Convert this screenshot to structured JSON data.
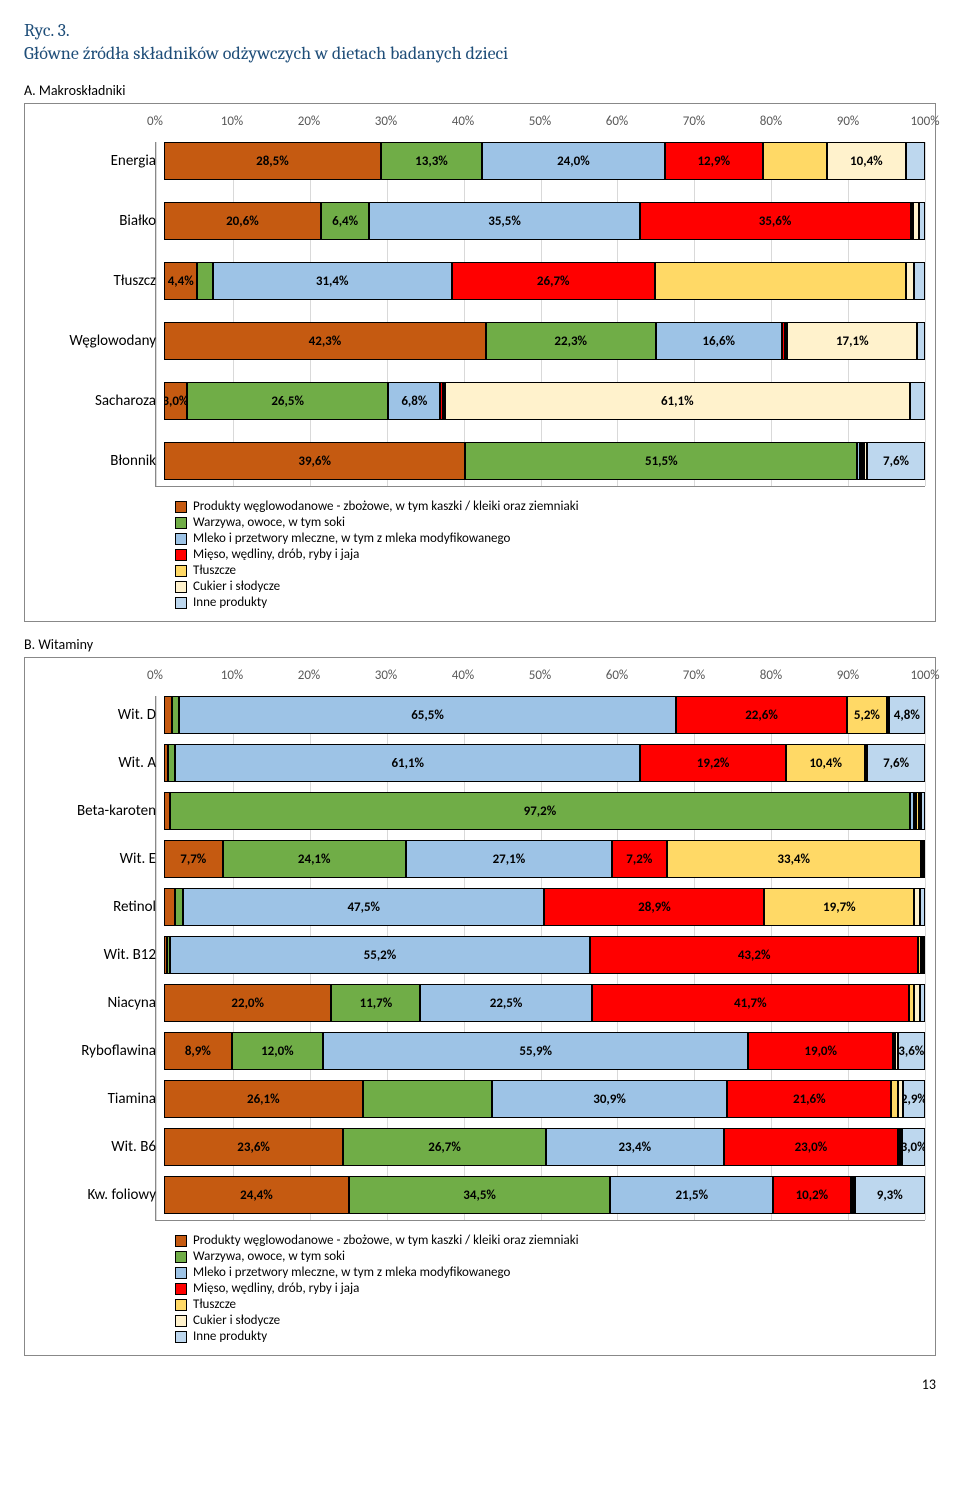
{
  "figure_label": "Ryc. 3.",
  "figure_title": "Główne źródła składników odżywczych w dietach badanych dzieci",
  "page_number": "13",
  "colors": {
    "c1": "#c55a11",
    "c2": "#70ad47",
    "c3": "#9dc3e6",
    "c4": "#ff0000",
    "c5": "#ffd966",
    "c6": "#fff2cc",
    "c7": "#bdd7ee"
  },
  "legend": [
    "Produkty węglowodanowe - zbożowe, w tym kaszki / kleiki oraz ziemniaki",
    "Warzywa, owoce, w tym soki",
    "Mleko i przetwory mleczne, w tym z mleka modyfikowanego",
    "Mięso, wędliny, drób, ryby i jaja",
    "Tłuszcze",
    "Cukier i słodycze",
    "Inne produkty"
  ],
  "chartA": {
    "title": "A. Makroskładniki",
    "ticks": [
      "0%",
      "10%",
      "20%",
      "30%",
      "40%",
      "50%",
      "60%",
      "70%",
      "80%",
      "90%",
      "100%"
    ],
    "rows": [
      {
        "label": "Energia",
        "segs": [
          {
            "v": 28.5,
            "t": "28,5%",
            "c": "c1"
          },
          {
            "v": 13.3,
            "t": "13,3%",
            "c": "c2"
          },
          {
            "v": 24.0,
            "t": "24,0%",
            "c": "c3"
          },
          {
            "v": 12.9,
            "t": "12,9%",
            "c": "c4"
          },
          {
            "v": 8.4,
            "t": "",
            "c": "c5"
          },
          {
            "v": 10.4,
            "t": "10,4%",
            "c": "c6"
          },
          {
            "v": 2.5,
            "t": "",
            "c": "c7"
          }
        ]
      },
      {
        "label": "Białko",
        "segs": [
          {
            "v": 20.6,
            "t": "20,6%",
            "c": "c1"
          },
          {
            "v": 6.4,
            "t": "6,4%",
            "c": "c2"
          },
          {
            "v": 35.5,
            "t": "35,5%",
            "c": "c3"
          },
          {
            "v": 35.6,
            "t": "35,6%",
            "c": "c4"
          },
          {
            "v": 0.3,
            "t": "",
            "c": "c5"
          },
          {
            "v": 0.8,
            "t": "",
            "c": "c6"
          },
          {
            "v": 0.8,
            "t": "",
            "c": "c7"
          }
        ]
      },
      {
        "label": "Tłuszcz",
        "segs": [
          {
            "v": 4.4,
            "t": "4,4%",
            "c": "c1"
          },
          {
            "v": 2.0,
            "t": "",
            "c": "c2"
          },
          {
            "v": 31.4,
            "t": "31,4%",
            "c": "c3"
          },
          {
            "v": 26.7,
            "t": "26,7%",
            "c": "c4"
          },
          {
            "v": 33.0,
            "t": "",
            "c": "c5"
          },
          {
            "v": 1.0,
            "t": "",
            "c": "c6"
          },
          {
            "v": 1.5,
            "t": "",
            "c": "c7"
          }
        ]
      },
      {
        "label": "Węglowodany",
        "segs": [
          {
            "v": 42.3,
            "t": "42,3%",
            "c": "c1"
          },
          {
            "v": 22.3,
            "t": "22,3%",
            "c": "c2"
          },
          {
            "v": 16.6,
            "t": "16,6%",
            "c": "c3"
          },
          {
            "v": 0.4,
            "t": "",
            "c": "c4"
          },
          {
            "v": 0.3,
            "t": "",
            "c": "c5"
          },
          {
            "v": 17.1,
            "t": "17,1%",
            "c": "c6"
          },
          {
            "v": 1.0,
            "t": "",
            "c": "c7"
          }
        ]
      },
      {
        "label": "Sacharoza",
        "segs": [
          {
            "v": 3.0,
            "t": "3,0%",
            "c": "c1"
          },
          {
            "v": 26.5,
            "t": "26,5%",
            "c": "c2"
          },
          {
            "v": 6.8,
            "t": "6,8%",
            "c": "c3"
          },
          {
            "v": 0.3,
            "t": "",
            "c": "c4"
          },
          {
            "v": 0.3,
            "t": "",
            "c": "c5"
          },
          {
            "v": 61.1,
            "t": "61,1%",
            "c": "c6"
          },
          {
            "v": 2.0,
            "t": "",
            "c": "c7"
          }
        ]
      },
      {
        "label": "Błonnik",
        "segs": [
          {
            "v": 39.6,
            "t": "39,6%",
            "c": "c1"
          },
          {
            "v": 51.5,
            "t": "51,5%",
            "c": "c2"
          },
          {
            "v": 0.3,
            "t": "",
            "c": "c3"
          },
          {
            "v": 0.3,
            "t": "",
            "c": "c4"
          },
          {
            "v": 0.3,
            "t": "",
            "c": "c5"
          },
          {
            "v": 0.4,
            "t": "",
            "c": "c6"
          },
          {
            "v": 7.6,
            "t": "7,6%",
            "c": "c7"
          }
        ]
      }
    ]
  },
  "chartB": {
    "title": "B. Witaminy",
    "ticks": [
      "0%",
      "10%",
      "20%",
      "30%",
      "40%",
      "50%",
      "60%",
      "70%",
      "80%",
      "90%",
      "100%"
    ],
    "rows": [
      {
        "label": "Wit. D",
        "segs": [
          {
            "v": 1.0,
            "t": "",
            "c": "c1"
          },
          {
            "v": 1.0,
            "t": "",
            "c": "c2"
          },
          {
            "v": 65.5,
            "t": "65,5%",
            "c": "c3"
          },
          {
            "v": 22.6,
            "t": "22,6%",
            "c": "c4"
          },
          {
            "v": 5.2,
            "t": "5,2%",
            "c": "c5"
          },
          {
            "v": 0.0,
            "t": "",
            "c": "c6"
          },
          {
            "v": 4.8,
            "t": "4,8%",
            "c": "c7"
          }
        ]
      },
      {
        "label": "Wit. A",
        "segs": [
          {
            "v": 0.5,
            "t": "",
            "c": "c1"
          },
          {
            "v": 1.0,
            "t": "",
            "c": "c2"
          },
          {
            "v": 61.1,
            "t": "61,1%",
            "c": "c3"
          },
          {
            "v": 19.2,
            "t": "19,2%",
            "c": "c4"
          },
          {
            "v": 10.4,
            "t": "10,4%",
            "c": "c5"
          },
          {
            "v": 0.2,
            "t": "",
            "c": "c6"
          },
          {
            "v": 7.6,
            "t": "7,6%",
            "c": "c7"
          }
        ]
      },
      {
        "label": "Beta-karoten",
        "segs": [
          {
            "v": 0.8,
            "t": "",
            "c": "c1"
          },
          {
            "v": 97.2,
            "t": "97,2%",
            "c": "c2"
          },
          {
            "v": 0.5,
            "t": "",
            "c": "c3"
          },
          {
            "v": 0.3,
            "t": "",
            "c": "c4"
          },
          {
            "v": 0.4,
            "t": "",
            "c": "c5"
          },
          {
            "v": 0.3,
            "t": "",
            "c": "c6"
          },
          {
            "v": 0.5,
            "t": "",
            "c": "c7"
          }
        ]
      },
      {
        "label": "Wit. E",
        "segs": [
          {
            "v": 7.7,
            "t": "7,7%",
            "c": "c1"
          },
          {
            "v": 24.1,
            "t": "24,1%",
            "c": "c2"
          },
          {
            "v": 27.1,
            "t": "27,1%",
            "c": "c3"
          },
          {
            "v": 7.2,
            "t": "7,2%",
            "c": "c4"
          },
          {
            "v": 33.4,
            "t": "33,4%",
            "c": "c5"
          },
          {
            "v": 0.3,
            "t": "",
            "c": "c6"
          },
          {
            "v": 0.2,
            "t": "",
            "c": "c7"
          }
        ]
      },
      {
        "label": "Retinol",
        "segs": [
          {
            "v": 1.5,
            "t": "",
            "c": "c1"
          },
          {
            "v": 1.0,
            "t": "",
            "c": "c2"
          },
          {
            "v": 47.5,
            "t": "47,5%",
            "c": "c3"
          },
          {
            "v": 28.9,
            "t": "28,9%",
            "c": "c4"
          },
          {
            "v": 19.7,
            "t": "19,7%",
            "c": "c5"
          },
          {
            "v": 0.7,
            "t": "",
            "c": "c6"
          },
          {
            "v": 0.7,
            "t": "",
            "c": "c7"
          }
        ]
      },
      {
        "label": "Wit. B12",
        "segs": [
          {
            "v": 0.4,
            "t": "",
            "c": "c1"
          },
          {
            "v": 0.4,
            "t": "",
            "c": "c2"
          },
          {
            "v": 55.2,
            "t": "55,2%",
            "c": "c3"
          },
          {
            "v": 43.2,
            "t": "43,2%",
            "c": "c4"
          },
          {
            "v": 0.3,
            "t": "",
            "c": "c5"
          },
          {
            "v": 0.3,
            "t": "",
            "c": "c6"
          },
          {
            "v": 0.2,
            "t": "",
            "c": "c7"
          }
        ]
      },
      {
        "label": "Niacyna",
        "segs": [
          {
            "v": 22.0,
            "t": "22,0%",
            "c": "c1"
          },
          {
            "v": 11.7,
            "t": "11,7%",
            "c": "c2"
          },
          {
            "v": 22.5,
            "t": "22,5%",
            "c": "c3"
          },
          {
            "v": 41.7,
            "t": "41,7%",
            "c": "c4"
          },
          {
            "v": 0.7,
            "t": "",
            "c": "c5"
          },
          {
            "v": 0.7,
            "t": "",
            "c": "c6"
          },
          {
            "v": 0.7,
            "t": "",
            "c": "c7"
          }
        ]
      },
      {
        "label": "Ryboflawina",
        "segs": [
          {
            "v": 8.9,
            "t": "8,9%",
            "c": "c1"
          },
          {
            "v": 12.0,
            "t": "12,0%",
            "c": "c2"
          },
          {
            "v": 55.9,
            "t": "55,9%",
            "c": "c3"
          },
          {
            "v": 19.0,
            "t": "19,0%",
            "c": "c4"
          },
          {
            "v": 0.3,
            "t": "",
            "c": "c5"
          },
          {
            "v": 0.3,
            "t": "",
            "c": "c6"
          },
          {
            "v": 3.6,
            "t": "3,6%",
            "c": "c7"
          }
        ]
      },
      {
        "label": "Tiamina",
        "segs": [
          {
            "v": 26.1,
            "t": "26,1%",
            "c": "c1"
          },
          {
            "v": 17.0,
            "t": "",
            "c": "c2"
          },
          {
            "v": 30.9,
            "t": "30,9%",
            "c": "c3"
          },
          {
            "v": 21.6,
            "t": "21,6%",
            "c": "c4"
          },
          {
            "v": 0.8,
            "t": "",
            "c": "c5"
          },
          {
            "v": 0.7,
            "t": "",
            "c": "c6"
          },
          {
            "v": 2.9,
            "t": "2,9%",
            "c": "c7"
          }
        ]
      },
      {
        "label": "Wit. B6",
        "segs": [
          {
            "v": 23.6,
            "t": "23,6%",
            "c": "c1"
          },
          {
            "v": 26.7,
            "t": "26,7%",
            "c": "c2"
          },
          {
            "v": 23.4,
            "t": "23,4%",
            "c": "c3"
          },
          {
            "v": 23.0,
            "t": "23,0%",
            "c": "c4"
          },
          {
            "v": 0.2,
            "t": "",
            "c": "c5"
          },
          {
            "v": 0.1,
            "t": "",
            "c": "c6"
          },
          {
            "v": 3.0,
            "t": "3,0%",
            "c": "c7"
          }
        ]
      },
      {
        "label": "Kw. foliowy",
        "segs": [
          {
            "v": 24.4,
            "t": "24,4%",
            "c": "c1"
          },
          {
            "v": 34.5,
            "t": "34,5%",
            "c": "c2"
          },
          {
            "v": 21.5,
            "t": "21,5%",
            "c": "c3"
          },
          {
            "v": 10.2,
            "t": "10,2%",
            "c": "c4"
          },
          {
            "v": 0.1,
            "t": "",
            "c": "c5"
          },
          {
            "v": 0.0,
            "t": "",
            "c": "c6"
          },
          {
            "v": 9.3,
            "t": "9,3%",
            "c": "c7"
          }
        ]
      }
    ]
  }
}
